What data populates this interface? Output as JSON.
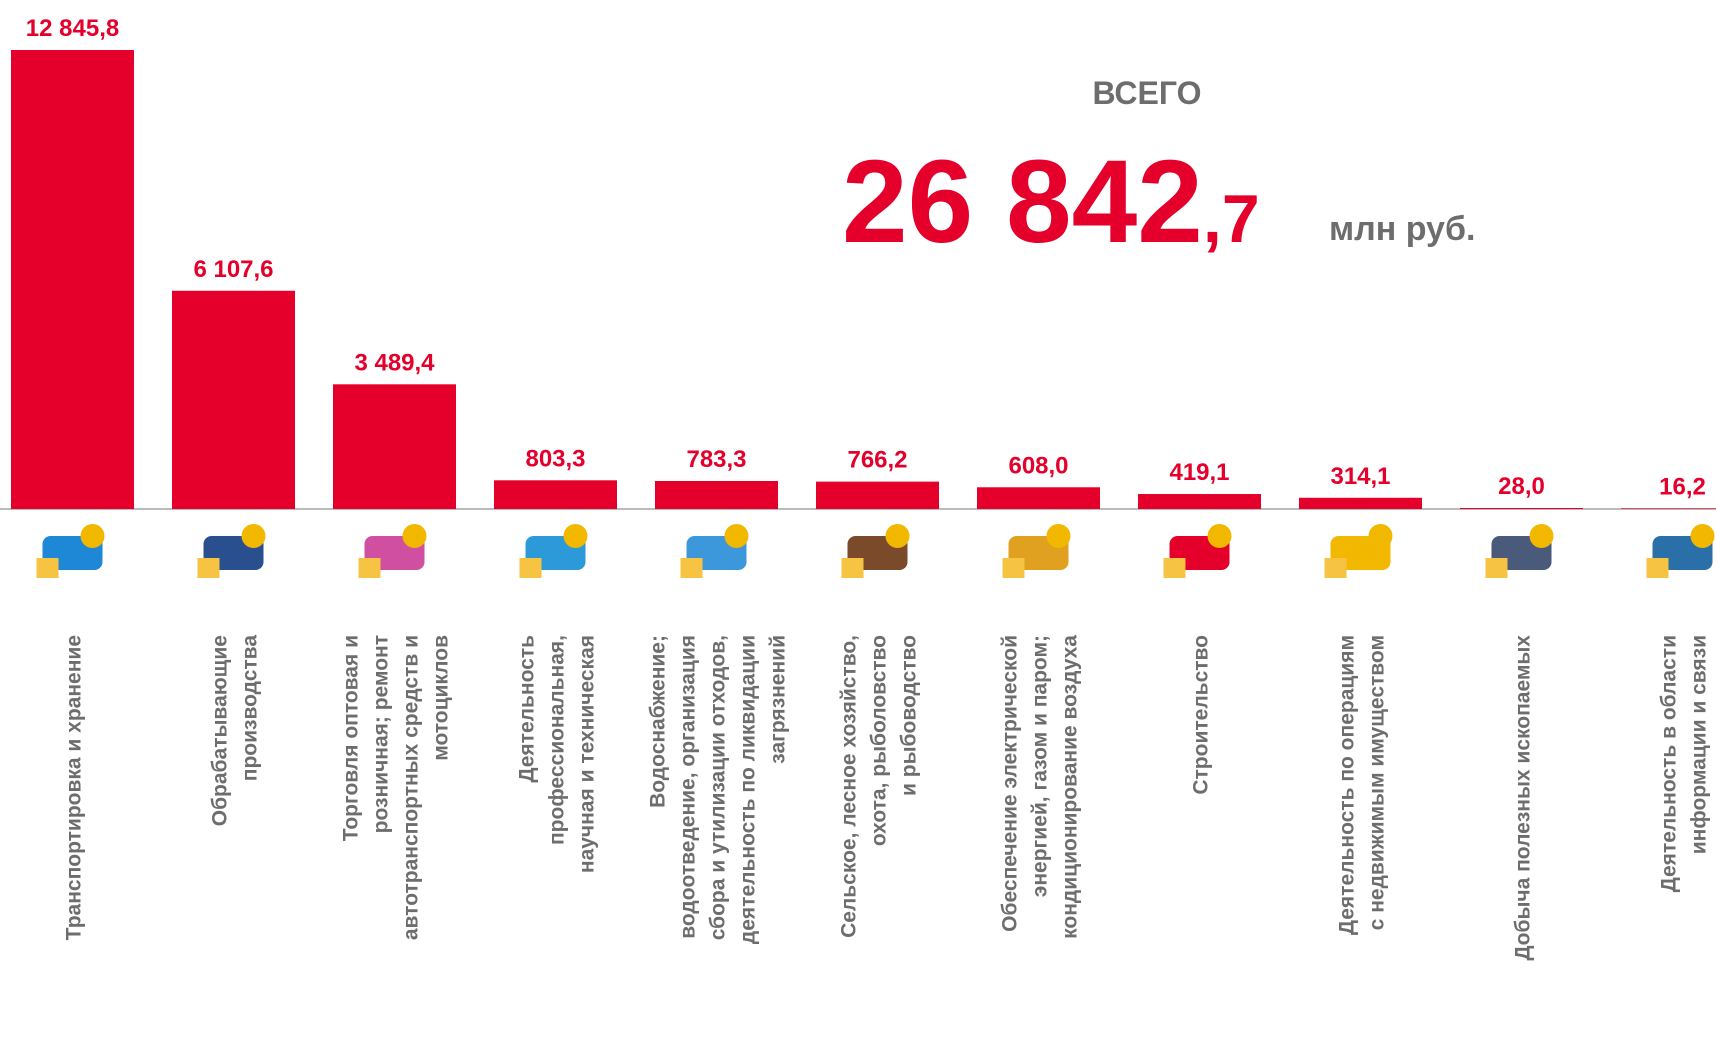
{
  "chart_data": {
    "type": "bar",
    "color": "#e4002b",
    "total_title": "ВСЕГО",
    "total_integer": "26 842",
    "total_decimal": ",7",
    "total_unit": "млн руб.",
    "categories": [
      "Транспортировка и хранение",
      "Обрабатывающие\nпроизводства",
      "Торговля оптовая и\nрозничная; ремонт\nавтотранспортных средств и\nмотоциклов",
      "Деятельность\nпрофессиональная,\nнаучная и техническая",
      "Водоснабжение;\nводоотведение, организация\nсбора и утилизации отходов,\nдеятельность по ликвидации\nзагрязнений",
      "Сельское, лесное хозяйство,\nохота, рыболовство\nи  рыбоводство",
      "Обеспечение электрической\nэнергией, газом и паром;\nкондиционирование воздуха",
      "Строительство",
      "Деятельность по операциям\nс недвижимым имуществом",
      "Добыча полезных ископаемых",
      "Деятельность в области\nинформации и связи"
    ],
    "values": [
      12845.8,
      6107.6,
      3489.4,
      803.3,
      783.3,
      766.2,
      608.0,
      419.1,
      314.1,
      28.0,
      16.2
    ],
    "value_labels": [
      "12 845,8",
      "6 107,6",
      "3 489,4",
      "803,3",
      "783,3",
      "766,2",
      "608,0",
      "419,1",
      "314,1",
      "28,0",
      "16,2"
    ]
  }
}
